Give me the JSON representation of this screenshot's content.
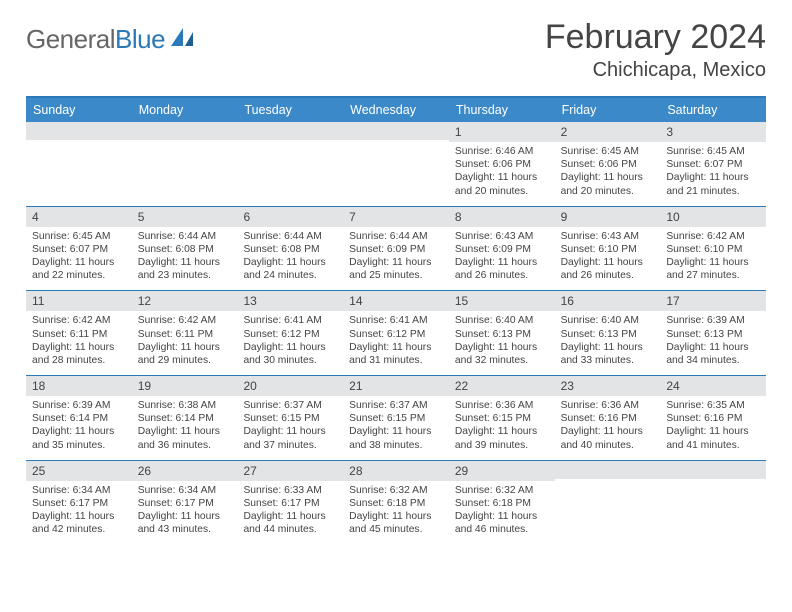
{
  "logo": {
    "general": "General",
    "blue": "Blue"
  },
  "title": "February 2024",
  "location": "Chichicapa, Mexico",
  "colors": {
    "header_bg": "#3b89c9",
    "rule": "#2a7ab9",
    "daynum_bg": "#e2e4e6",
    "text": "#444444",
    "page_bg": "#ffffff"
  },
  "dow": [
    "Sunday",
    "Monday",
    "Tuesday",
    "Wednesday",
    "Thursday",
    "Friday",
    "Saturday"
  ],
  "weeks": [
    [
      {
        "n": "",
        "sr": "",
        "ss": "",
        "dl": ""
      },
      {
        "n": "",
        "sr": "",
        "ss": "",
        "dl": ""
      },
      {
        "n": "",
        "sr": "",
        "ss": "",
        "dl": ""
      },
      {
        "n": "",
        "sr": "",
        "ss": "",
        "dl": ""
      },
      {
        "n": "1",
        "sr": "Sunrise: 6:46 AM",
        "ss": "Sunset: 6:06 PM",
        "dl": "Daylight: 11 hours and 20 minutes."
      },
      {
        "n": "2",
        "sr": "Sunrise: 6:45 AM",
        "ss": "Sunset: 6:06 PM",
        "dl": "Daylight: 11 hours and 20 minutes."
      },
      {
        "n": "3",
        "sr": "Sunrise: 6:45 AM",
        "ss": "Sunset: 6:07 PM",
        "dl": "Daylight: 11 hours and 21 minutes."
      }
    ],
    [
      {
        "n": "4",
        "sr": "Sunrise: 6:45 AM",
        "ss": "Sunset: 6:07 PM",
        "dl": "Daylight: 11 hours and 22 minutes."
      },
      {
        "n": "5",
        "sr": "Sunrise: 6:44 AM",
        "ss": "Sunset: 6:08 PM",
        "dl": "Daylight: 11 hours and 23 minutes."
      },
      {
        "n": "6",
        "sr": "Sunrise: 6:44 AM",
        "ss": "Sunset: 6:08 PM",
        "dl": "Daylight: 11 hours and 24 minutes."
      },
      {
        "n": "7",
        "sr": "Sunrise: 6:44 AM",
        "ss": "Sunset: 6:09 PM",
        "dl": "Daylight: 11 hours and 25 minutes."
      },
      {
        "n": "8",
        "sr": "Sunrise: 6:43 AM",
        "ss": "Sunset: 6:09 PM",
        "dl": "Daylight: 11 hours and 26 minutes."
      },
      {
        "n": "9",
        "sr": "Sunrise: 6:43 AM",
        "ss": "Sunset: 6:10 PM",
        "dl": "Daylight: 11 hours and 26 minutes."
      },
      {
        "n": "10",
        "sr": "Sunrise: 6:42 AM",
        "ss": "Sunset: 6:10 PM",
        "dl": "Daylight: 11 hours and 27 minutes."
      }
    ],
    [
      {
        "n": "11",
        "sr": "Sunrise: 6:42 AM",
        "ss": "Sunset: 6:11 PM",
        "dl": "Daylight: 11 hours and 28 minutes."
      },
      {
        "n": "12",
        "sr": "Sunrise: 6:42 AM",
        "ss": "Sunset: 6:11 PM",
        "dl": "Daylight: 11 hours and 29 minutes."
      },
      {
        "n": "13",
        "sr": "Sunrise: 6:41 AM",
        "ss": "Sunset: 6:12 PM",
        "dl": "Daylight: 11 hours and 30 minutes."
      },
      {
        "n": "14",
        "sr": "Sunrise: 6:41 AM",
        "ss": "Sunset: 6:12 PM",
        "dl": "Daylight: 11 hours and 31 minutes."
      },
      {
        "n": "15",
        "sr": "Sunrise: 6:40 AM",
        "ss": "Sunset: 6:13 PM",
        "dl": "Daylight: 11 hours and 32 minutes."
      },
      {
        "n": "16",
        "sr": "Sunrise: 6:40 AM",
        "ss": "Sunset: 6:13 PM",
        "dl": "Daylight: 11 hours and 33 minutes."
      },
      {
        "n": "17",
        "sr": "Sunrise: 6:39 AM",
        "ss": "Sunset: 6:13 PM",
        "dl": "Daylight: 11 hours and 34 minutes."
      }
    ],
    [
      {
        "n": "18",
        "sr": "Sunrise: 6:39 AM",
        "ss": "Sunset: 6:14 PM",
        "dl": "Daylight: 11 hours and 35 minutes."
      },
      {
        "n": "19",
        "sr": "Sunrise: 6:38 AM",
        "ss": "Sunset: 6:14 PM",
        "dl": "Daylight: 11 hours and 36 minutes."
      },
      {
        "n": "20",
        "sr": "Sunrise: 6:37 AM",
        "ss": "Sunset: 6:15 PM",
        "dl": "Daylight: 11 hours and 37 minutes."
      },
      {
        "n": "21",
        "sr": "Sunrise: 6:37 AM",
        "ss": "Sunset: 6:15 PM",
        "dl": "Daylight: 11 hours and 38 minutes."
      },
      {
        "n": "22",
        "sr": "Sunrise: 6:36 AM",
        "ss": "Sunset: 6:15 PM",
        "dl": "Daylight: 11 hours and 39 minutes."
      },
      {
        "n": "23",
        "sr": "Sunrise: 6:36 AM",
        "ss": "Sunset: 6:16 PM",
        "dl": "Daylight: 11 hours and 40 minutes."
      },
      {
        "n": "24",
        "sr": "Sunrise: 6:35 AM",
        "ss": "Sunset: 6:16 PM",
        "dl": "Daylight: 11 hours and 41 minutes."
      }
    ],
    [
      {
        "n": "25",
        "sr": "Sunrise: 6:34 AM",
        "ss": "Sunset: 6:17 PM",
        "dl": "Daylight: 11 hours and 42 minutes."
      },
      {
        "n": "26",
        "sr": "Sunrise: 6:34 AM",
        "ss": "Sunset: 6:17 PM",
        "dl": "Daylight: 11 hours and 43 minutes."
      },
      {
        "n": "27",
        "sr": "Sunrise: 6:33 AM",
        "ss": "Sunset: 6:17 PM",
        "dl": "Daylight: 11 hours and 44 minutes."
      },
      {
        "n": "28",
        "sr": "Sunrise: 6:32 AM",
        "ss": "Sunset: 6:18 PM",
        "dl": "Daylight: 11 hours and 45 minutes."
      },
      {
        "n": "29",
        "sr": "Sunrise: 6:32 AM",
        "ss": "Sunset: 6:18 PM",
        "dl": "Daylight: 11 hours and 46 minutes."
      },
      {
        "n": "",
        "sr": "",
        "ss": "",
        "dl": ""
      },
      {
        "n": "",
        "sr": "",
        "ss": "",
        "dl": ""
      }
    ]
  ]
}
